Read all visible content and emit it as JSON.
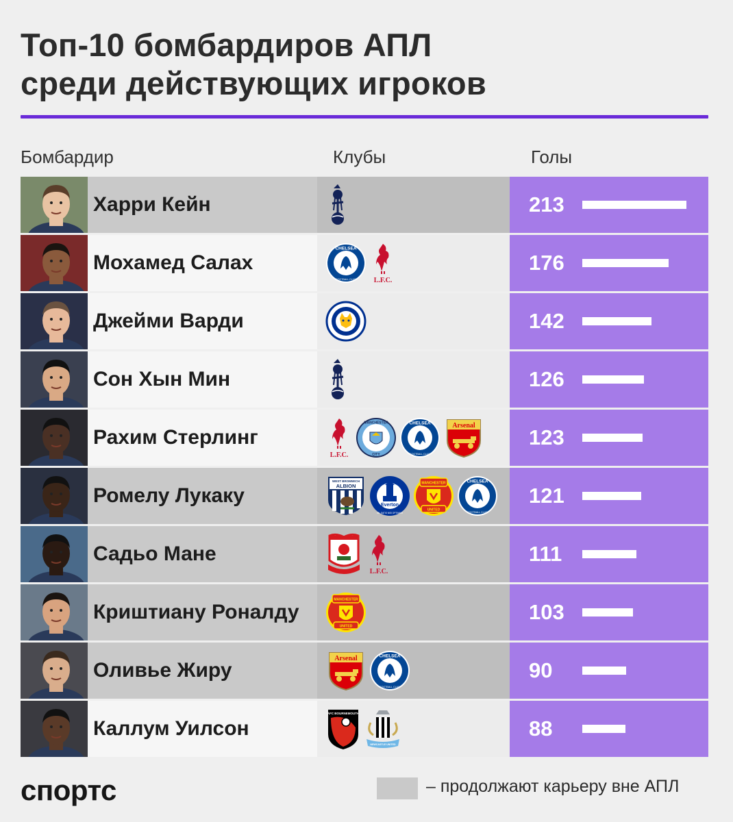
{
  "title": {
    "line1": "Топ-10 бомбардиров АПЛ",
    "line2": "среди действующих игроков"
  },
  "headers": {
    "scorer": "Бомбардир",
    "clubs": "Клубы",
    "goals": "Голы"
  },
  "colors": {
    "accent": "#6a2ad8",
    "goals_bg": "#a57be8",
    "abroad_bg": "#c9c9c9"
  },
  "chart_data": {
    "type": "bar",
    "categories": [
      "Харри Кейн",
      "Мохамед Салах",
      "Джейми Варди",
      "Сон Хын Мин",
      "Рахим Стерлинг",
      "Ромелу Лукаку",
      "Садьо Мане",
      "Криштиану Роналду",
      "Оливье Жиру",
      "Каллум Уилсон"
    ],
    "values": [
      213,
      176,
      142,
      126,
      123,
      121,
      111,
      103,
      90,
      88
    ],
    "orientation": "horizontal"
  },
  "rows": [
    {
      "name": "Харри Кейн",
      "goals": "213",
      "abroad": true,
      "clubs": [
        "tottenham"
      ]
    },
    {
      "name": "Мохамед Салах",
      "goals": "176",
      "abroad": false,
      "clubs": [
        "chelsea",
        "liverpool"
      ]
    },
    {
      "name": "Джейми Варди",
      "goals": "142",
      "abroad": false,
      "clubs": [
        "leicester"
      ]
    },
    {
      "name": "Сон Хын Мин",
      "goals": "126",
      "abroad": false,
      "clubs": [
        "tottenham"
      ]
    },
    {
      "name": "Рахим Стерлинг",
      "goals": "123",
      "abroad": false,
      "clubs": [
        "liverpool",
        "mancity",
        "chelsea",
        "arsenal"
      ]
    },
    {
      "name": "Ромелу Лукаку",
      "goals": "121",
      "abroad": true,
      "clubs": [
        "wba",
        "everton",
        "manutd",
        "chelsea"
      ]
    },
    {
      "name": "Садьо Мане",
      "goals": "111",
      "abroad": true,
      "clubs": [
        "southampton",
        "liverpool"
      ]
    },
    {
      "name": "Криштиану Роналду",
      "goals": "103",
      "abroad": true,
      "clubs": [
        "manutd"
      ]
    },
    {
      "name": "Оливье Жиру",
      "goals": "90",
      "abroad": true,
      "clubs": [
        "arsenal",
        "chelsea"
      ]
    },
    {
      "name": "Каллум Уилсон",
      "goals": "88",
      "abroad": false,
      "clubs": [
        "bournemouth",
        "newcastle"
      ]
    }
  ],
  "club_crests": {
    "tottenham": {
      "icon": "tottenham-crest-icon"
    },
    "chelsea": {
      "icon": "chelsea-crest-icon",
      "text": "CHELSEA",
      "subtext": "FOOTBALL CLUB"
    },
    "liverpool": {
      "icon": "liverpool-crest-icon",
      "text": "L.F.C."
    },
    "leicester": {
      "icon": "leicester-crest-icon",
      "text": "LEICESTER CITY FOOTBALL CLUB"
    },
    "mancity": {
      "icon": "mancity-crest-icon",
      "text": "MANCHESTER",
      "subtext": "CITY"
    },
    "arsenal": {
      "icon": "arsenal-crest-icon",
      "text": "Arsenal"
    },
    "wba": {
      "icon": "wba-crest-icon",
      "text": "WEST BROMWICH",
      "subtext": "ALBION"
    },
    "everton": {
      "icon": "everton-crest-icon",
      "text": "Everton",
      "subtext": "NIL SATIS NISI OPTIMUM"
    },
    "manutd": {
      "icon": "manutd-crest-icon",
      "text": "MANCHESTER",
      "subtext": "UNITED"
    },
    "southampton": {
      "icon": "southampton-crest-icon",
      "text": "SOUTHAMPTON F.C."
    },
    "bournemouth": {
      "icon": "bournemouth-crest-icon",
      "text": "AFC BOURNEMOUTH"
    },
    "newcastle": {
      "icon": "newcastle-crest-icon",
      "text": "NEWCASTLE UNITED"
    }
  },
  "footer": {
    "logo": "спортс",
    "legend": "– продолжают карьеру вне АПЛ"
  }
}
